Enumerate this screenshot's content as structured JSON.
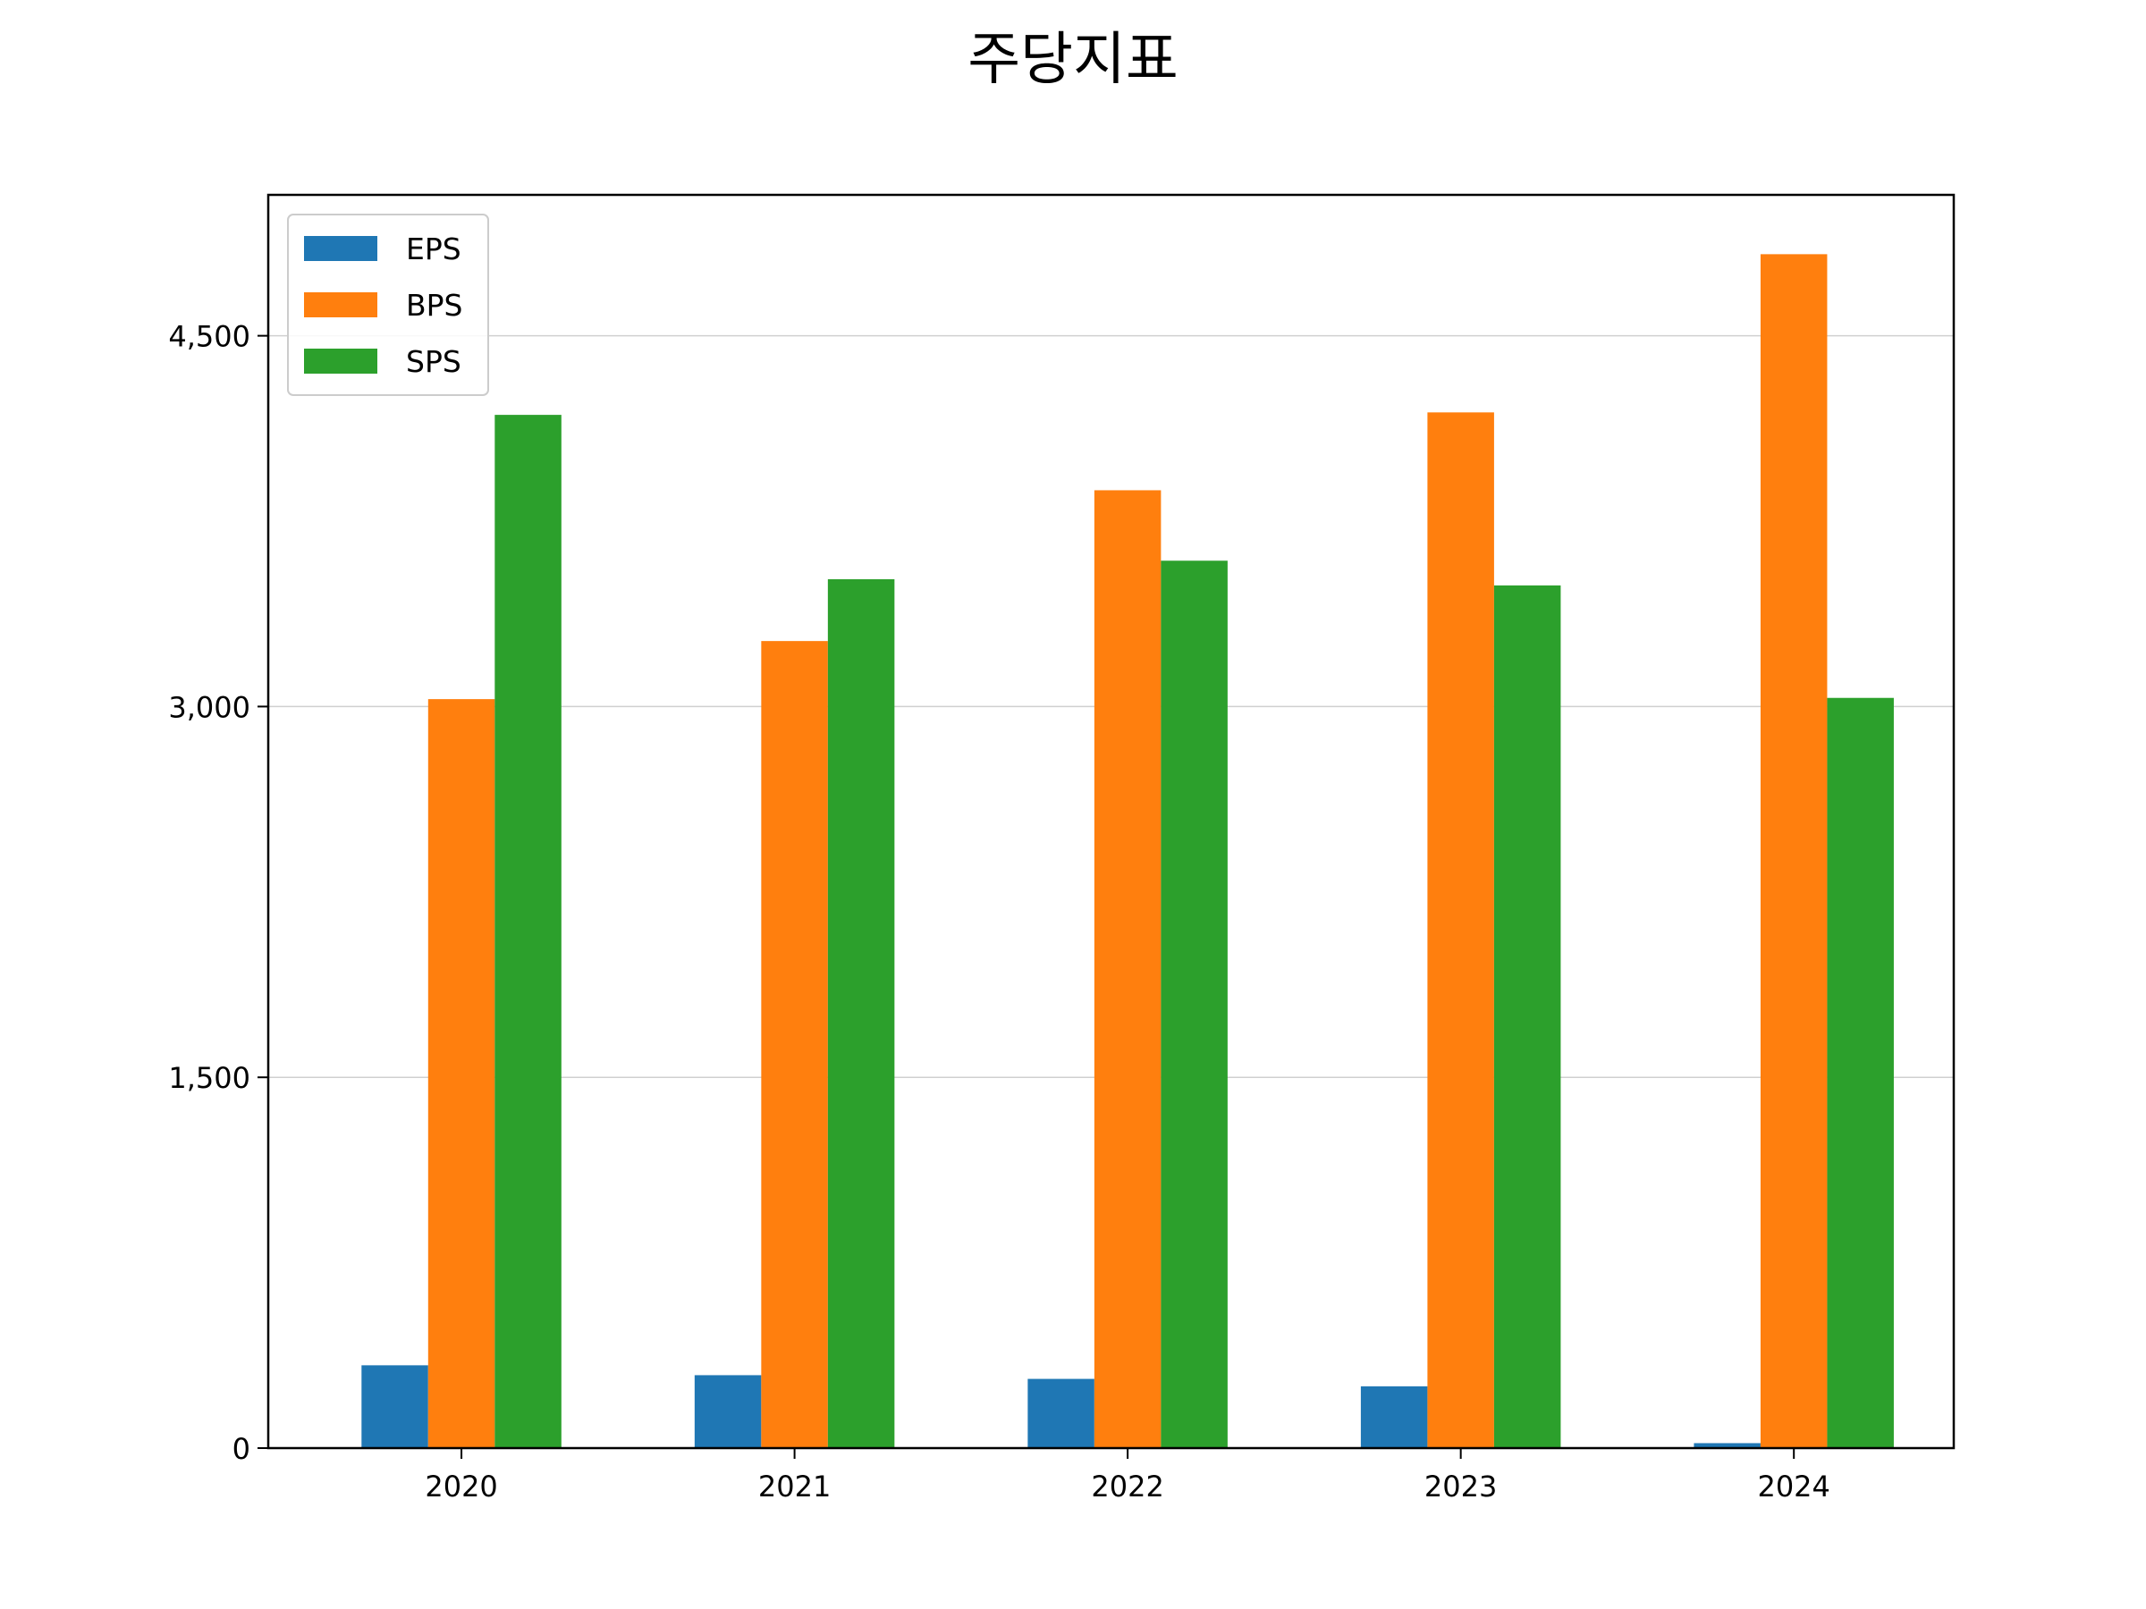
{
  "chart_data": {
    "type": "bar",
    "title": "주당지표",
    "xlabel": "",
    "ylabel": "",
    "categories": [
      "2020",
      "2021",
      "2022",
      "2023",
      "2024"
    ],
    "series": [
      {
        "name": "EPS",
        "color": "#1f77b4",
        "values": [
          335,
          295,
          280,
          250,
          20
        ]
      },
      {
        "name": "BPS",
        "color": "#ff7f0e",
        "values": [
          3030,
          3265,
          3875,
          4190,
          4830
        ]
      },
      {
        "name": "SPS",
        "color": "#2ca02c",
        "values": [
          4180,
          3515,
          3590,
          3490,
          3035
        ]
      }
    ],
    "ylim": [
      0,
      5070
    ],
    "yticks": [
      0,
      1500,
      3000,
      4500
    ],
    "ytick_labels": [
      "0",
      "1,500",
      "3,000",
      "4,500"
    ],
    "grid": "horizontal",
    "legend_position": "top-left"
  }
}
